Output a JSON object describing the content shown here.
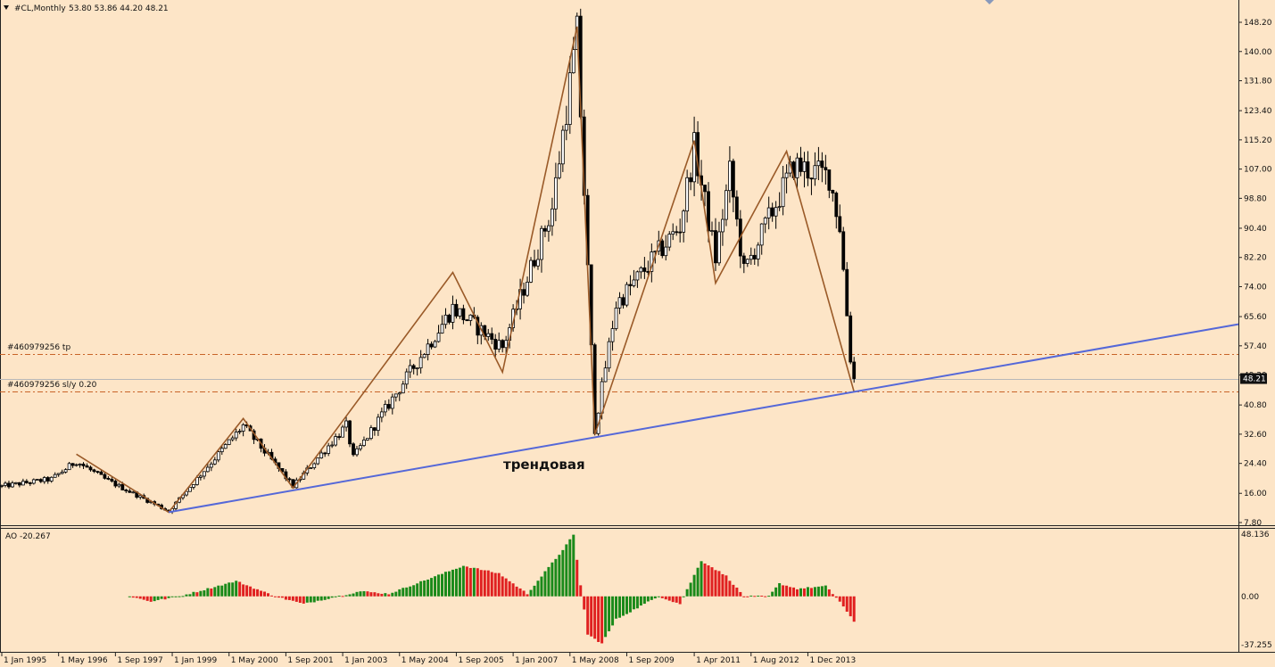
{
  "header": {
    "symbol": "#CL,Monthly",
    "ohlc": "53.80 53.86 44.20 48.21"
  },
  "indicator": {
    "label": "AO -20.267",
    "scale_labels": [
      "48.136",
      "0.00",
      "-37.255"
    ]
  },
  "order_lines": {
    "tp_label": "#460979256 tp",
    "sl_label": "#460979256 sl/y 0.20"
  },
  "annotation": "трендовая",
  "current_price": "48.21",
  "colors": {
    "background": "#FDE5C7",
    "bull_candle": "#FFFFFF",
    "bear_candle": "#000000",
    "zigzag": "#9A5A28",
    "trendline": "#5568D8",
    "order_line": "#C86428",
    "ao_up": "#1A8A1A",
    "ao_down": "#E02020"
  },
  "chart_data": {
    "type": "candlestick",
    "symbol": "#CL",
    "timeframe": "Monthly",
    "y_ticks": [
      "148.20",
      "140.00",
      "131.80",
      "123.40",
      "115.20",
      "107.00",
      "98.80",
      "90.40",
      "82.20",
      "74.00",
      "65.60",
      "57.40",
      "49.20",
      "40.80",
      "32.60",
      "24.40",
      "16.00",
      "7.80"
    ],
    "ylim": [
      7.8,
      148.2
    ],
    "x_ticks": [
      "1 Jan 1995",
      "1 May 1996",
      "1 Sep 1997",
      "1 Jan 1999",
      "1 May 2000",
      "1 Sep 2001",
      "1 Jan 2003",
      "1 May 2004",
      "1 Sep 2005",
      "1 Jan 2007",
      "1 May 2008",
      "1 Sep 2009",
      "1 Apr 2011",
      "1 Aug 2012",
      "1 Dec 2013"
    ],
    "x_range": [
      "1995-01",
      "2015-01"
    ],
    "price_anchors": [
      [
        "1995-01",
        18
      ],
      [
        "1996-03",
        20
      ],
      [
        "1996-10",
        25
      ],
      [
        "1997-06",
        20
      ],
      [
        "1998-12",
        11
      ],
      [
        "2000-09",
        35
      ],
      [
        "2001-11",
        18
      ],
      [
        "2003-02",
        35
      ],
      [
        "2003-04",
        26
      ],
      [
        "2005-08",
        68
      ],
      [
        "2006-10",
        57
      ],
      [
        "2007-12",
        96
      ],
      [
        "2008-07",
        145
      ],
      [
        "2008-12",
        34
      ],
      [
        "2009-06",
        69
      ],
      [
        "2010-12",
        91
      ],
      [
        "2011-04",
        113
      ],
      [
        "2011-10",
        82
      ],
      [
        "2012-02",
        106
      ],
      [
        "2012-06",
        78
      ],
      [
        "2013-08",
        108
      ],
      [
        "2014-06",
        105
      ],
      [
        "2014-09",
        91
      ],
      [
        "2014-12",
        54
      ],
      [
        "2015-01",
        48.21
      ]
    ],
    "zigzag": [
      [
        "1996-10",
        27
      ],
      [
        "1998-12",
        10.7
      ],
      [
        "2000-09",
        37
      ],
      [
        "2001-11",
        17.5
      ],
      [
        "2005-08",
        78
      ],
      [
        "2006-10",
        50
      ],
      [
        "2008-07",
        147
      ],
      [
        "2008-12",
        32.5
      ],
      [
        "2011-04",
        115
      ],
      [
        "2011-10",
        75
      ],
      [
        "2013-06",
        112
      ],
      [
        "2015-01",
        44.5
      ]
    ],
    "trendline": [
      [
        "1998-12",
        10.7
      ],
      [
        "2015-01",
        44.5
      ]
    ],
    "horizontal_lines": [
      {
        "label": "#460979256 tp",
        "value": 55.2
      },
      {
        "label": "#460979256 sl/y 0.20",
        "value": 44.5
      },
      {
        "label": "bid",
        "value": 48.21
      }
    ],
    "current_price": 48.21,
    "ao": {
      "label": "AO -20.267",
      "max": 48.136,
      "min": -37.255,
      "anchors": [
        [
          "1998-01",
          0
        ],
        [
          "1998-07",
          -4
        ],
        [
          "1999-03",
          0
        ],
        [
          "2000-07",
          12
        ],
        [
          "2001-06",
          0
        ],
        [
          "2002-02",
          -6
        ],
        [
          "2003-06",
          4
        ],
        [
          "2004-02",
          2
        ],
        [
          "2005-11",
          24
        ],
        [
          "2006-09",
          18
        ],
        [
          "2007-05",
          2
        ],
        [
          "2008-02",
          33
        ],
        [
          "2008-06",
          48
        ],
        [
          "2008-10",
          -30
        ],
        [
          "2009-02",
          -37
        ],
        [
          "2009-06",
          -18
        ],
        [
          "2010-06",
          0
        ],
        [
          "2010-12",
          -6
        ],
        [
          "2011-06",
          28
        ],
        [
          "2012-01",
          16
        ],
        [
          "2012-06",
          0
        ],
        [
          "2013-01",
          0
        ],
        [
          "2013-04",
          10
        ],
        [
          "2013-09",
          6
        ],
        [
          "2014-05",
          8
        ],
        [
          "2014-09",
          -4
        ],
        [
          "2015-01",
          -20.267
        ]
      ]
    }
  }
}
